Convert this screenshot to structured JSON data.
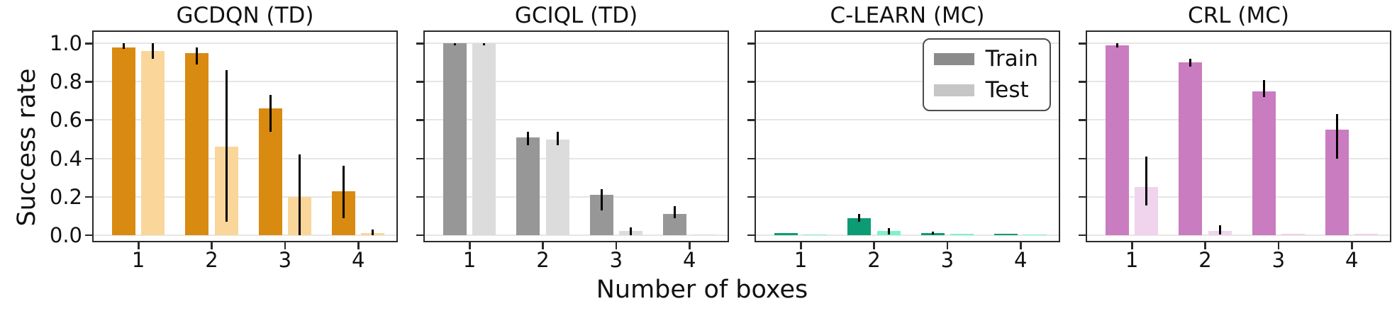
{
  "figure": {
    "ylabel": "Success rate",
    "xlabel": "Number of boxes",
    "ytick_labels": [
      "0.0",
      "0.2",
      "0.4",
      "0.6",
      "0.8",
      "1.0"
    ],
    "xtick_labels": [
      "1",
      "2",
      "3",
      "4"
    ]
  },
  "legend": {
    "entries": [
      {
        "label": "Train",
        "swatch_color": "#8b8b8b"
      },
      {
        "label": "Test",
        "swatch_color": "#c6c6c6"
      }
    ]
  },
  "colors": {
    "grid": "#e6e6e6",
    "spine": "#2a2a2a",
    "errorbar": "#000000"
  },
  "chart_data": {
    "type": "bar",
    "categories": [
      1,
      2,
      3,
      4
    ],
    "xlabel": "Number of boxes",
    "ylabel": "Success rate",
    "ylim": [
      0,
      1
    ],
    "yticks": [
      0.0,
      0.2,
      0.4,
      0.6,
      0.8,
      1.0
    ],
    "grid": true,
    "legend_position": "top-right of C-LEARN (MC) panel",
    "panels": [
      {
        "title": "GCDQN (TD)",
        "series": [
          {
            "name": "Train",
            "color": "#d98a10",
            "values": [
              0.98,
              0.95,
              0.66,
              0.23
            ],
            "err": [
              [
                0.97,
                1.0
              ],
              [
                0.89,
                0.98
              ],
              [
                0.54,
                0.73
              ],
              [
                0.09,
                0.36
              ]
            ]
          },
          {
            "name": "Test",
            "color": "#fad69b",
            "values": [
              0.96,
              0.46,
              0.2,
              0.01
            ],
            "err": [
              [
                0.92,
                1.0
              ],
              [
                0.07,
                0.86
              ],
              [
                0.0,
                0.42
              ],
              [
                0.0,
                0.03
              ]
            ]
          }
        ]
      },
      {
        "title": "GCIQL (TD)",
        "series": [
          {
            "name": "Train",
            "color": "#979797",
            "values": [
              1.0,
              0.51,
              0.21,
              0.11
            ],
            "err": [
              [
                0.99,
                1.0
              ],
              [
                0.47,
                0.54
              ],
              [
                0.13,
                0.24
              ],
              [
                0.09,
                0.15
              ]
            ]
          },
          {
            "name": "Test",
            "color": "#dcdcdc",
            "values": [
              1.0,
              0.5,
              0.02,
              0.005
            ],
            "err": [
              [
                0.99,
                1.0
              ],
              [
                0.47,
                0.54
              ],
              [
                0.0,
                0.04
              ],
              null
            ]
          }
        ]
      },
      {
        "title": "C-LEARN (MC)",
        "series": [
          {
            "name": "Train",
            "color": "#0d9b74",
            "values": [
              0.01,
              0.09,
              0.01,
              0.007
            ],
            "err": [
              null,
              [
                0.07,
                0.11
              ],
              [
                0.004,
                0.018
              ],
              null
            ]
          },
          {
            "name": "Test",
            "color": "#7df2cb",
            "values": [
              0.005,
              0.02,
              0.006,
              0.005
            ],
            "err": [
              null,
              [
                0.005,
                0.035
              ],
              null,
              null
            ]
          }
        ]
      },
      {
        "title": "CRL (MC)",
        "series": [
          {
            "name": "Train",
            "color": "#c97cbf",
            "values": [
              0.99,
              0.9,
              0.75,
              0.55
            ],
            "err": [
              [
                0.98,
                1.0
              ],
              [
                0.88,
                0.92
              ],
              [
                0.72,
                0.81
              ],
              [
                0.4,
                0.63
              ]
            ]
          },
          {
            "name": "Test",
            "color": "#f0d3ec",
            "values": [
              0.25,
              0.02,
              0.006,
              0.006
            ],
            "err": [
              [
                0.155,
                0.41
              ],
              [
                0.005,
                0.05
              ],
              null,
              null
            ]
          }
        ]
      }
    ]
  }
}
